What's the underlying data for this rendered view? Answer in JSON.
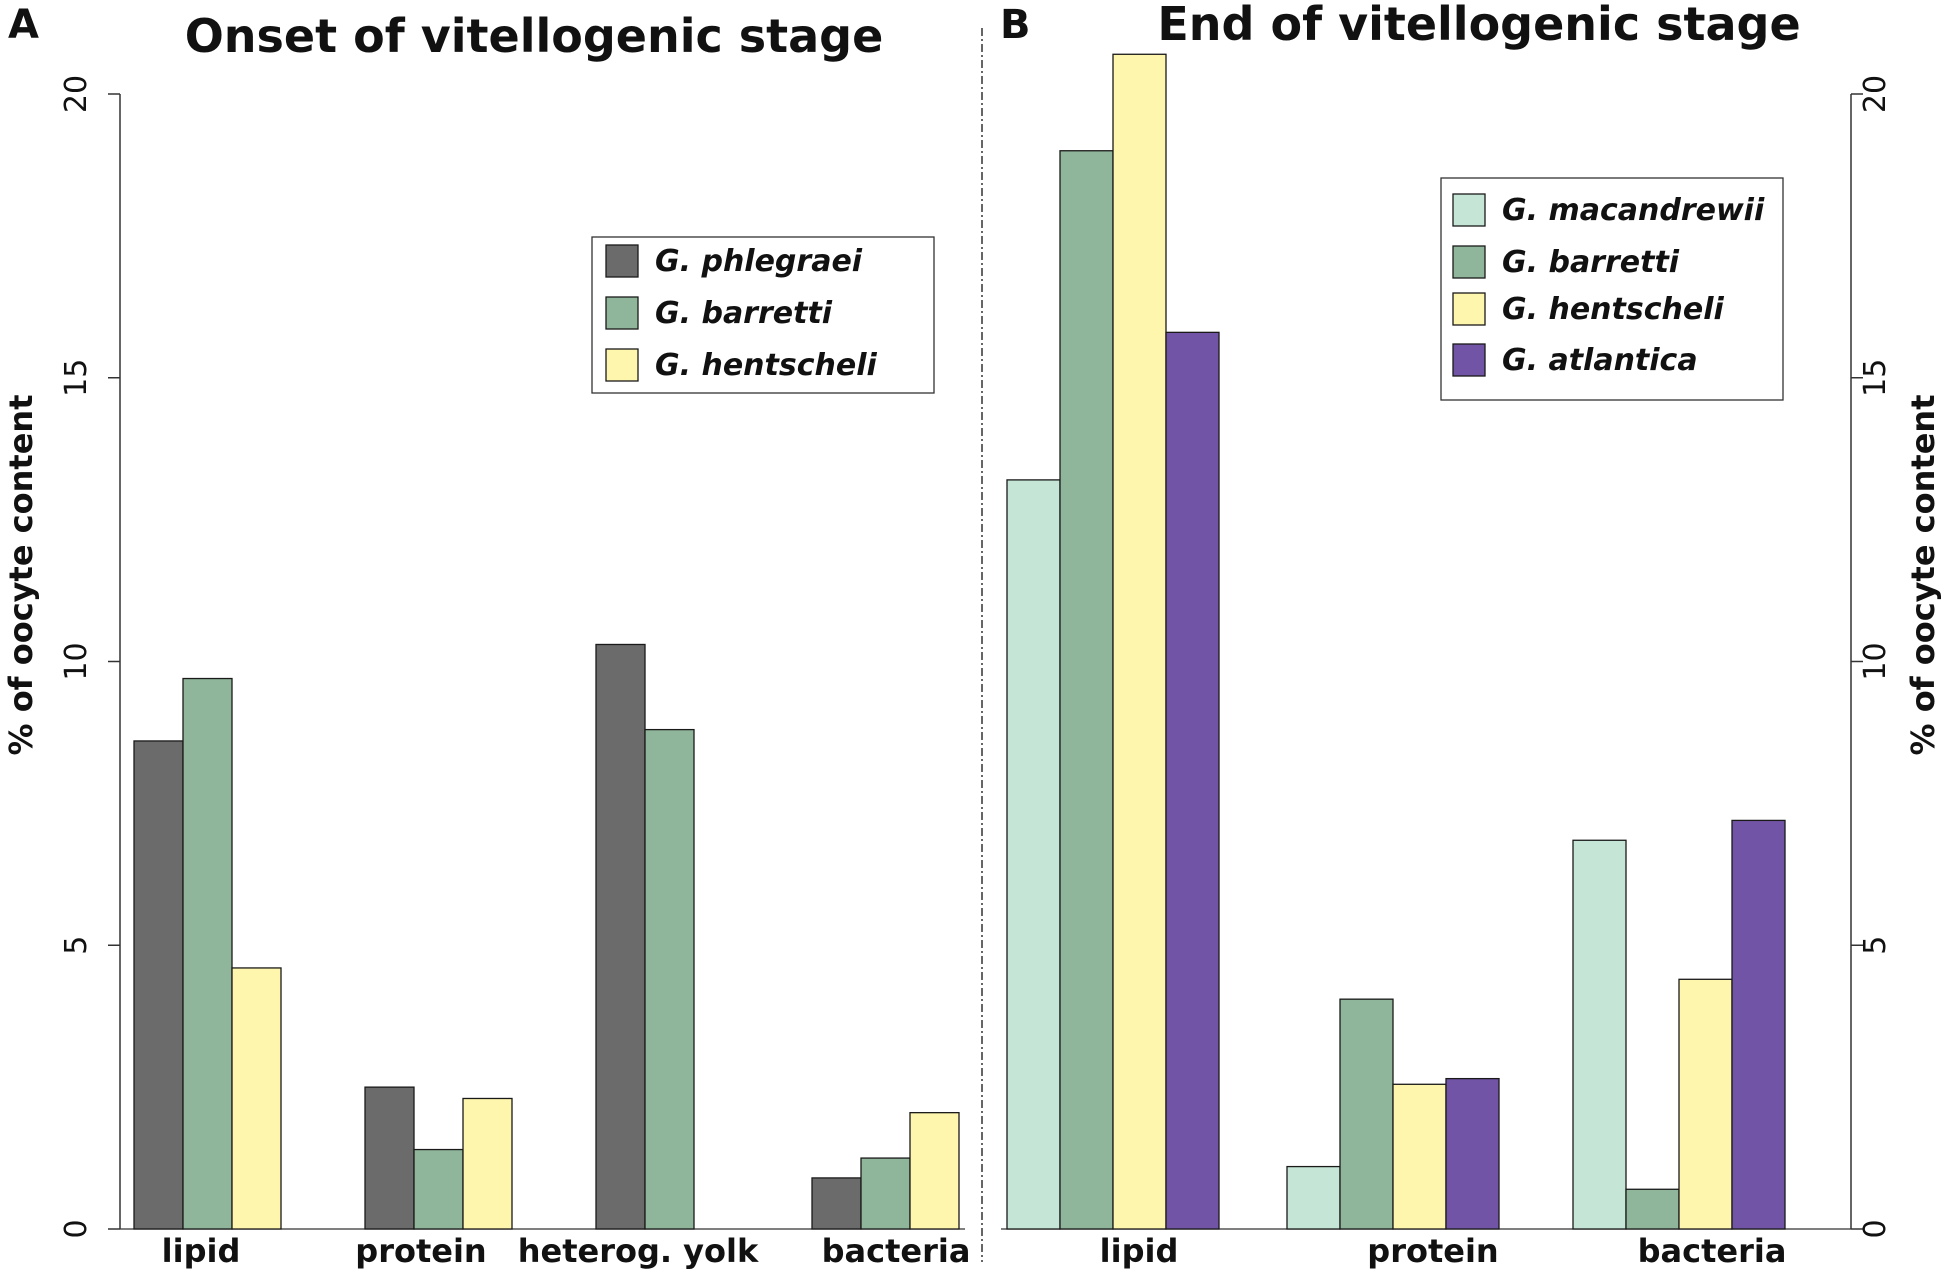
{
  "chart_data": [
    {
      "type": "bar",
      "panel": "A",
      "title": "Onset of vitellogenic stage",
      "ylabel": "% of oocyte content",
      "yaxis_side": "left",
      "ylim": [
        0,
        20
      ],
      "yticks": [
        0,
        5,
        10,
        15,
        20
      ],
      "categories": [
        "lipid",
        "protein",
        "heterog. yolk",
        "bacteria"
      ],
      "legend_position": "upper-right",
      "series": [
        {
          "name": "G. phlegraei",
          "color": "#6b6b6b",
          "values": [
            8.6,
            2.5,
            10.3,
            0.9
          ]
        },
        {
          "name": "G. barretti",
          "color": "#8fb59a",
          "values": [
            9.7,
            1.4,
            8.8,
            1.25
          ]
        },
        {
          "name": "G. hentscheli",
          "color": "#fff6ad",
          "values": [
            4.6,
            2.3,
            null,
            2.05
          ]
        }
      ]
    },
    {
      "type": "bar",
      "panel": "B",
      "title": "End of vitellogenic stage",
      "ylabel": "% of oocyte content",
      "yaxis_side": "right",
      "ylim": [
        0,
        20
      ],
      "yticks": [
        0,
        5,
        10,
        15,
        20
      ],
      "categories": [
        "lipid",
        "protein",
        "bacteria"
      ],
      "legend_position": "upper-right",
      "series": [
        {
          "name": "G. macandrewii",
          "color": "#c5e6d6",
          "values": [
            13.2,
            1.1,
            6.85
          ]
        },
        {
          "name": "G. barretti",
          "color": "#8fb59a",
          "values": [
            19.0,
            4.05,
            0.7
          ]
        },
        {
          "name": "G. hentscheli",
          "color": "#fff6ad",
          "values": [
            20.7,
            2.55,
            4.4
          ]
        },
        {
          "name": "G. atlantica",
          "color": "#7254a6",
          "values": [
            15.8,
            2.65,
            7.2
          ]
        }
      ]
    }
  ]
}
